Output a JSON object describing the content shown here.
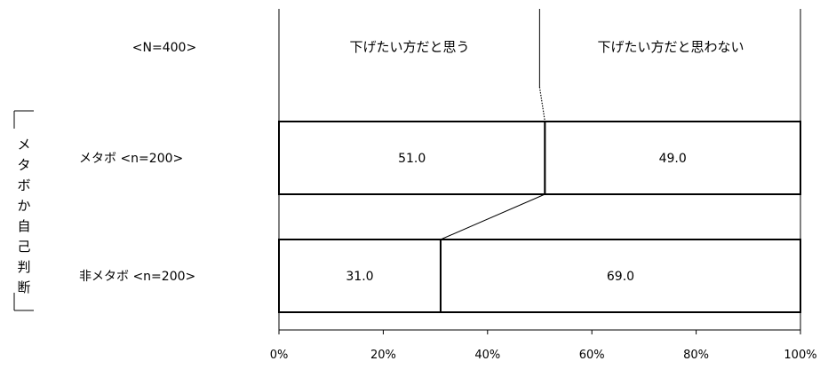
{
  "chart_data": {
    "type": "bar",
    "orientation": "horizontal",
    "stacked": true,
    "percent": true,
    "sample_label": "<N=400>",
    "group_label": "メタボか自己判断",
    "series": [
      {
        "name": "下げたい方だと思う",
        "values": [
          51.0,
          31.0
        ]
      },
      {
        "name": "下げたい方だと思わない",
        "values": [
          49.0,
          69.0
        ]
      }
    ],
    "categories": [
      "メタボ <n=200>",
      "非メタボ <n=200>"
    ],
    "xlim": [
      0,
      100
    ],
    "xticks": [
      "0%",
      "20%",
      "40%",
      "60%",
      "80%",
      "100%"
    ],
    "legend_position": "top",
    "grid": false
  }
}
